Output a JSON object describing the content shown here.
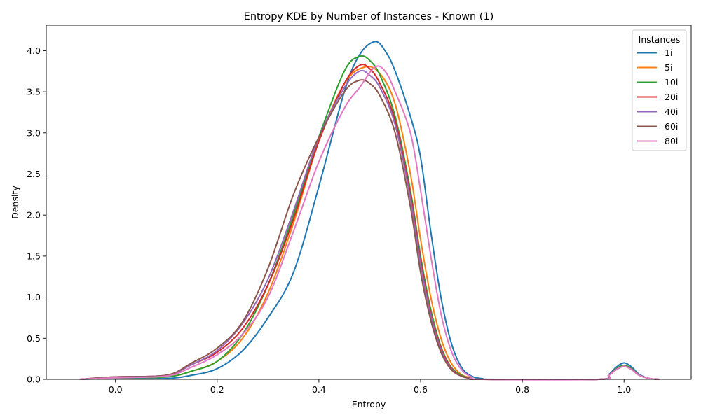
{
  "chart_data": {
    "type": "line",
    "title": "Entropy KDE by Number of Instances - Known (1)",
    "xlabel": "Entropy",
    "ylabel": "Density",
    "xlim": [
      -0.136,
      1.132
    ],
    "ylim": [
      0,
      4.31
    ],
    "xticks": [
      0.0,
      0.2,
      0.4,
      0.6,
      0.8,
      1.0
    ],
    "xtick_labels": [
      "0.0",
      "0.2",
      "0.4",
      "0.6",
      "0.8",
      "1.0"
    ],
    "yticks": [
      0.0,
      0.5,
      1.0,
      1.5,
      2.0,
      2.5,
      3.0,
      3.5,
      4.0
    ],
    "ytick_labels": [
      "0.0",
      "0.5",
      "1.0",
      "1.5",
      "2.0",
      "2.5",
      "3.0",
      "3.5",
      "4.0"
    ],
    "grid": false,
    "legend": {
      "title": "Instances",
      "position": "top-right"
    },
    "series": [
      {
        "name": "1i",
        "color": "#1f77b4",
        "points": [
          [
            -0.07,
            0
          ],
          [
            0,
            0.01
          ],
          [
            0.1,
            0.01
          ],
          [
            0.15,
            0.05
          ],
          [
            0.2,
            0.13
          ],
          [
            0.25,
            0.35
          ],
          [
            0.3,
            0.75
          ],
          [
            0.35,
            1.3
          ],
          [
            0.4,
            2.35
          ],
          [
            0.45,
            3.5
          ],
          [
            0.48,
            3.95
          ],
          [
            0.51,
            4.11
          ],
          [
            0.53,
            4.0
          ],
          [
            0.55,
            3.75
          ],
          [
            0.58,
            3.2
          ],
          [
            0.6,
            2.7
          ],
          [
            0.62,
            1.8
          ],
          [
            0.64,
            1.0
          ],
          [
            0.66,
            0.45
          ],
          [
            0.68,
            0.15
          ],
          [
            0.7,
            0.04
          ],
          [
            0.72,
            0.01
          ],
          [
            0.75,
            0
          ],
          [
            0.95,
            0
          ],
          [
            0.97,
            0.06
          ],
          [
            0.985,
            0.15
          ],
          [
            1.0,
            0.2
          ],
          [
            1.015,
            0.15
          ],
          [
            1.03,
            0.06
          ],
          [
            1.05,
            0.01
          ],
          [
            1.07,
            0
          ]
        ]
      },
      {
        "name": "5i",
        "color": "#ff7f0e",
        "points": [
          [
            -0.07,
            0
          ],
          [
            0,
            0.02
          ],
          [
            0.1,
            0.03
          ],
          [
            0.15,
            0.1
          ],
          [
            0.2,
            0.22
          ],
          [
            0.25,
            0.5
          ],
          [
            0.3,
            1.05
          ],
          [
            0.35,
            1.9
          ],
          [
            0.4,
            2.9
          ],
          [
            0.45,
            3.6
          ],
          [
            0.49,
            3.8
          ],
          [
            0.52,
            3.72
          ],
          [
            0.55,
            3.35
          ],
          [
            0.58,
            2.5
          ],
          [
            0.6,
            1.7
          ],
          [
            0.62,
            1.0
          ],
          [
            0.64,
            0.5
          ],
          [
            0.66,
            0.2
          ],
          [
            0.68,
            0.06
          ],
          [
            0.7,
            0.02
          ],
          [
            0.72,
            0
          ],
          [
            0.95,
            0
          ],
          [
            0.97,
            0.05
          ],
          [
            0.985,
            0.13
          ],
          [
            1.0,
            0.17
          ],
          [
            1.015,
            0.13
          ],
          [
            1.03,
            0.05
          ],
          [
            1.05,
            0.01
          ],
          [
            1.07,
            0
          ]
        ]
      },
      {
        "name": "10i",
        "color": "#2ca02c",
        "points": [
          [
            -0.07,
            0
          ],
          [
            0,
            0.02
          ],
          [
            0.1,
            0.03
          ],
          [
            0.15,
            0.1
          ],
          [
            0.2,
            0.22
          ],
          [
            0.25,
            0.55
          ],
          [
            0.3,
            1.15
          ],
          [
            0.35,
            2.0
          ],
          [
            0.4,
            2.95
          ],
          [
            0.45,
            3.75
          ],
          [
            0.48,
            3.93
          ],
          [
            0.5,
            3.88
          ],
          [
            0.52,
            3.7
          ],
          [
            0.55,
            3.2
          ],
          [
            0.58,
            2.3
          ],
          [
            0.6,
            1.5
          ],
          [
            0.62,
            0.85
          ],
          [
            0.64,
            0.4
          ],
          [
            0.66,
            0.15
          ],
          [
            0.68,
            0.05
          ],
          [
            0.7,
            0.01
          ],
          [
            0.72,
            0
          ],
          [
            0.95,
            0
          ],
          [
            0.97,
            0.05
          ],
          [
            0.985,
            0.13
          ],
          [
            1.0,
            0.17
          ],
          [
            1.015,
            0.13
          ],
          [
            1.03,
            0.05
          ],
          [
            1.05,
            0.01
          ],
          [
            1.07,
            0
          ]
        ]
      },
      {
        "name": "20i",
        "color": "#d62728",
        "points": [
          [
            -0.07,
            0
          ],
          [
            0,
            0.03
          ],
          [
            0.1,
            0.05
          ],
          [
            0.15,
            0.18
          ],
          [
            0.2,
            0.33
          ],
          [
            0.25,
            0.62
          ],
          [
            0.3,
            1.15
          ],
          [
            0.35,
            1.95
          ],
          [
            0.4,
            2.9
          ],
          [
            0.45,
            3.6
          ],
          [
            0.48,
            3.82
          ],
          [
            0.5,
            3.78
          ],
          [
            0.52,
            3.6
          ],
          [
            0.55,
            3.15
          ],
          [
            0.58,
            2.25
          ],
          [
            0.6,
            1.45
          ],
          [
            0.62,
            0.8
          ],
          [
            0.64,
            0.38
          ],
          [
            0.66,
            0.14
          ],
          [
            0.68,
            0.04
          ],
          [
            0.7,
            0.01
          ],
          [
            0.72,
            0
          ],
          [
            0.95,
            0
          ],
          [
            0.97,
            0.05
          ],
          [
            0.985,
            0.12
          ],
          [
            1.0,
            0.16
          ],
          [
            1.015,
            0.12
          ],
          [
            1.03,
            0.05
          ],
          [
            1.05,
            0.01
          ],
          [
            1.07,
            0
          ]
        ]
      },
      {
        "name": "40i",
        "color": "#9467bd",
        "points": [
          [
            -0.07,
            0
          ],
          [
            0,
            0.03
          ],
          [
            0.1,
            0.05
          ],
          [
            0.15,
            0.18
          ],
          [
            0.2,
            0.35
          ],
          [
            0.25,
            0.68
          ],
          [
            0.3,
            1.22
          ],
          [
            0.35,
            2.05
          ],
          [
            0.4,
            2.95
          ],
          [
            0.45,
            3.55
          ],
          [
            0.48,
            3.75
          ],
          [
            0.5,
            3.7
          ],
          [
            0.52,
            3.55
          ],
          [
            0.55,
            3.1
          ],
          [
            0.58,
            2.2
          ],
          [
            0.6,
            1.4
          ],
          [
            0.62,
            0.78
          ],
          [
            0.64,
            0.36
          ],
          [
            0.66,
            0.13
          ],
          [
            0.68,
            0.04
          ],
          [
            0.7,
            0.01
          ],
          [
            0.72,
            0
          ],
          [
            0.95,
            0
          ],
          [
            0.97,
            0.05
          ],
          [
            0.985,
            0.12
          ],
          [
            1.0,
            0.16
          ],
          [
            1.015,
            0.12
          ],
          [
            1.03,
            0.05
          ],
          [
            1.05,
            0.01
          ],
          [
            1.07,
            0
          ]
        ]
      },
      {
        "name": "60i",
        "color": "#8c564b",
        "points": [
          [
            -0.07,
            0
          ],
          [
            0,
            0.03
          ],
          [
            0.1,
            0.05
          ],
          [
            0.15,
            0.2
          ],
          [
            0.2,
            0.38
          ],
          [
            0.25,
            0.7
          ],
          [
            0.3,
            1.35
          ],
          [
            0.35,
            2.25
          ],
          [
            0.4,
            2.95
          ],
          [
            0.45,
            3.5
          ],
          [
            0.48,
            3.64
          ],
          [
            0.5,
            3.6
          ],
          [
            0.52,
            3.45
          ],
          [
            0.55,
            3.0
          ],
          [
            0.58,
            2.1
          ],
          [
            0.6,
            1.3
          ],
          [
            0.62,
            0.72
          ],
          [
            0.64,
            0.33
          ],
          [
            0.66,
            0.12
          ],
          [
            0.68,
            0.04
          ],
          [
            0.7,
            0.01
          ],
          [
            0.72,
            0
          ],
          [
            0.95,
            0
          ],
          [
            0.97,
            0.05
          ],
          [
            0.985,
            0.12
          ],
          [
            1.0,
            0.16
          ],
          [
            1.015,
            0.12
          ],
          [
            1.03,
            0.05
          ],
          [
            1.05,
            0.01
          ],
          [
            1.07,
            0
          ]
        ]
      },
      {
        "name": "80i",
        "color": "#e377c2",
        "points": [
          [
            -0.07,
            0
          ],
          [
            0,
            0.02
          ],
          [
            0.1,
            0.04
          ],
          [
            0.15,
            0.15
          ],
          [
            0.2,
            0.3
          ],
          [
            0.25,
            0.55
          ],
          [
            0.3,
            1.0
          ],
          [
            0.35,
            1.8
          ],
          [
            0.4,
            2.65
          ],
          [
            0.45,
            3.3
          ],
          [
            0.48,
            3.55
          ],
          [
            0.51,
            3.8
          ],
          [
            0.53,
            3.75
          ],
          [
            0.55,
            3.5
          ],
          [
            0.58,
            3.0
          ],
          [
            0.6,
            2.3
          ],
          [
            0.62,
            1.5
          ],
          [
            0.64,
            0.8
          ],
          [
            0.66,
            0.35
          ],
          [
            0.68,
            0.12
          ],
          [
            0.7,
            0.03
          ],
          [
            0.72,
            0
          ],
          [
            0.95,
            0
          ],
          [
            0.97,
            0.05
          ],
          [
            0.985,
            0.12
          ],
          [
            1.0,
            0.16
          ],
          [
            1.015,
            0.12
          ],
          [
            1.03,
            0.05
          ],
          [
            1.05,
            0.01
          ],
          [
            1.07,
            0
          ]
        ]
      }
    ]
  }
}
